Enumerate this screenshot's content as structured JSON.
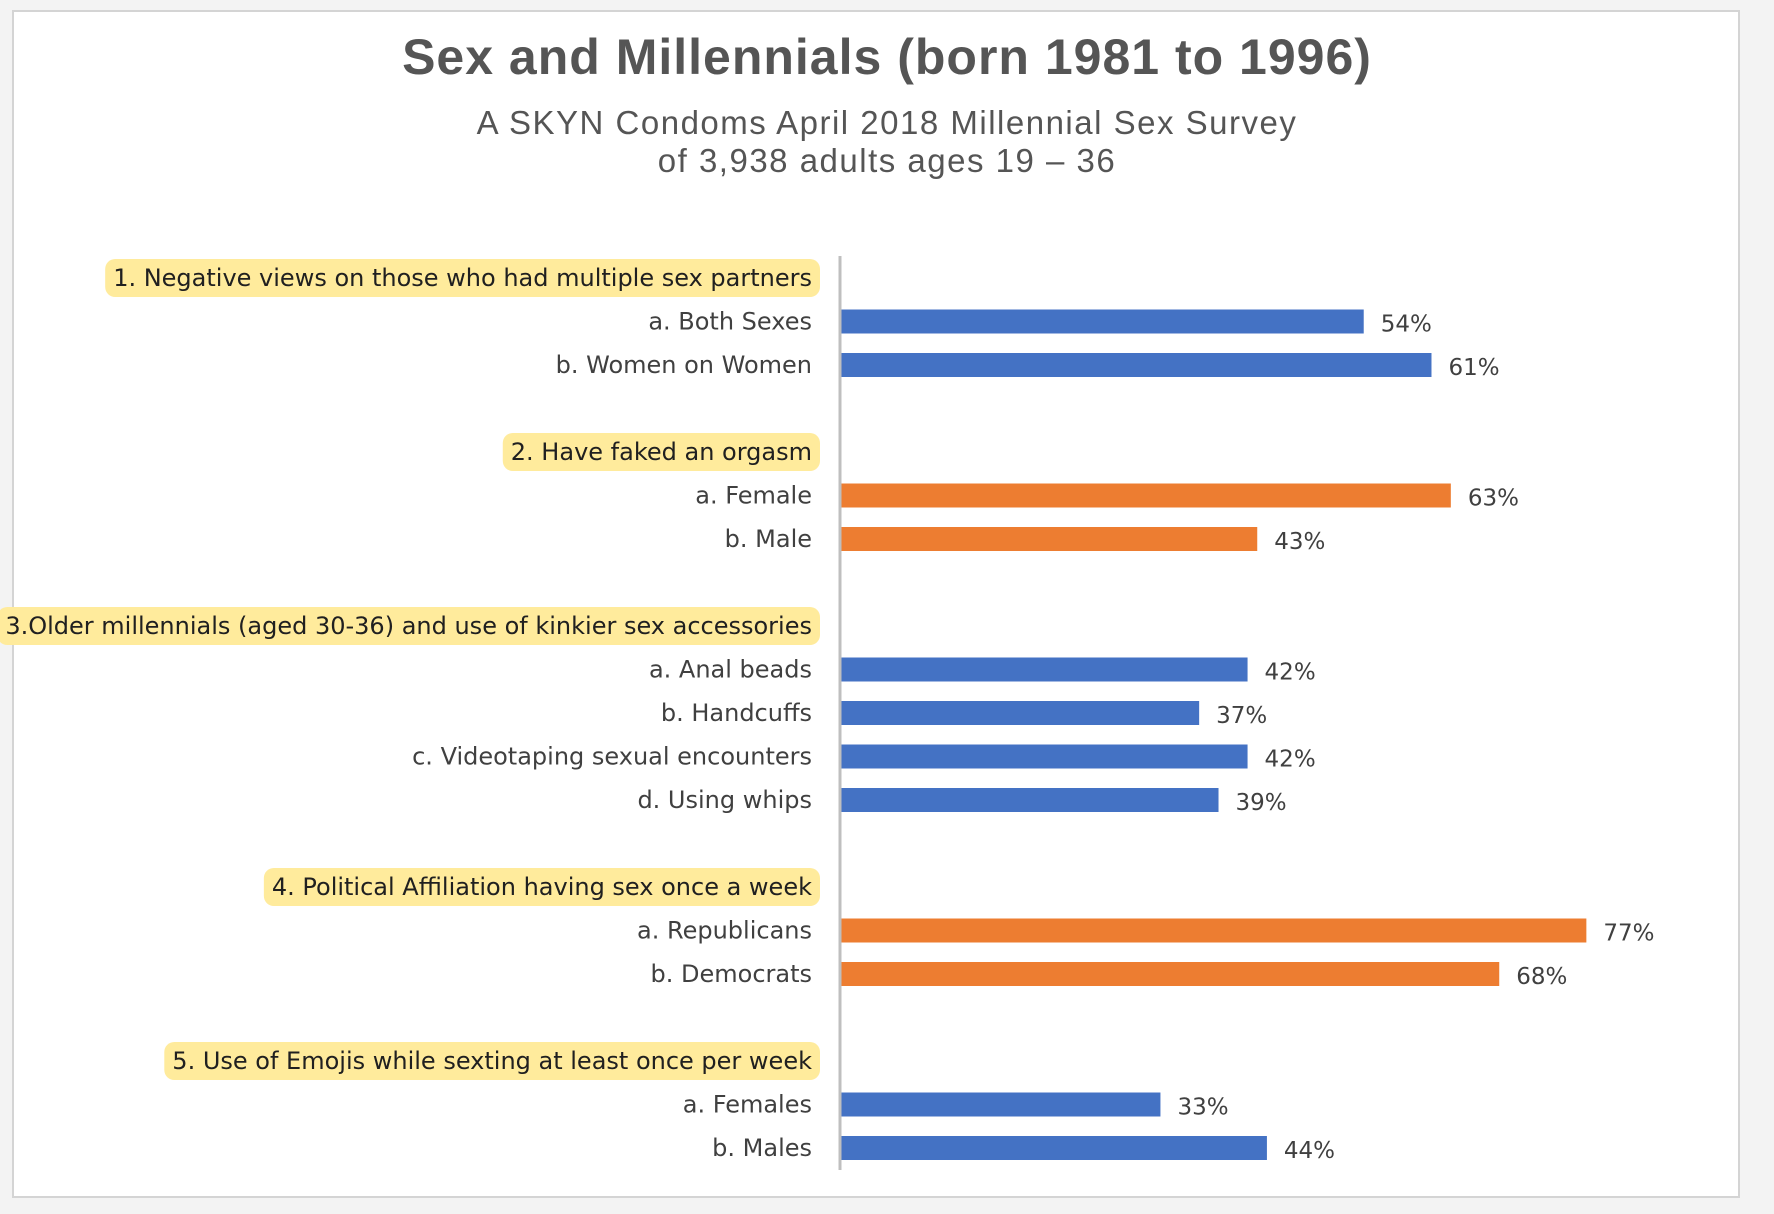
{
  "chart_data": {
    "type": "bar",
    "orientation": "horizontal",
    "title": "Sex and Millennials (born 1981 to 1996)",
    "subtitle_lines": [
      "A SKYN Condoms April 2018 Millennial Sex Survey",
      "of 3,938 adults ages 19 – 36"
    ],
    "xlim": [
      0,
      80
    ],
    "grid": false,
    "legend": "none",
    "value_format": "percent",
    "colors": {
      "blue": "#4472C4",
      "orange": "#ED7D31",
      "highlight": "#FFEB9C",
      "axis": "#bfbfbf"
    },
    "groups": [
      {
        "label": "1. Negative views on those who had multiple sex partners",
        "color": "blue",
        "items": [
          {
            "label": "a. Both Sexes",
            "value": 54
          },
          {
            "label": "b. Women on Women",
            "value": 61
          }
        ]
      },
      {
        "label": "2. Have faked an orgasm",
        "color": "orange",
        "items": [
          {
            "label": "a. Female",
            "value": 63
          },
          {
            "label": "b. Male",
            "value": 43
          }
        ]
      },
      {
        "label": "3.Older millennials (aged 30-36) and use of kinkier sex accessories",
        "color": "blue",
        "items": [
          {
            "label": "a. Anal beads",
            "value": 42
          },
          {
            "label": "b. Handcuffs",
            "value": 37
          },
          {
            "label": "c. Videotaping sexual encounters",
            "value": 42
          },
          {
            "label": "d. Using whips",
            "value": 39
          }
        ]
      },
      {
        "label": "4. Political Affiliation having sex once a week",
        "color": "orange",
        "items": [
          {
            "label": "a. Republicans",
            "value": 77
          },
          {
            "label": "b. Democrats",
            "value": 68
          }
        ]
      },
      {
        "label": "5. Use of Emojis while sexting at least once per week",
        "color": "blue",
        "items": [
          {
            "label": "a. Females",
            "value": 33
          },
          {
            "label": "b. Males",
            "value": 44
          }
        ]
      }
    ]
  }
}
